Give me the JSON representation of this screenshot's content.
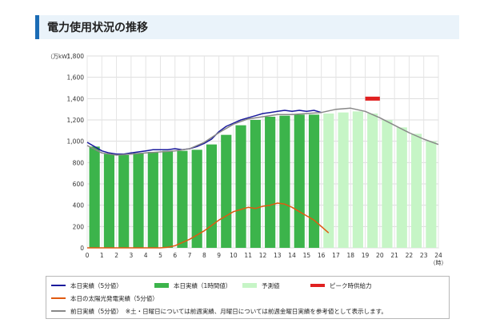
{
  "header": {
    "title": "電力使用状況の推移"
  },
  "chart_data": {
    "type": "bar",
    "yunit": "（万kW）",
    "xunit": "（時）",
    "ylim": [
      0,
      1800
    ],
    "yticks": [
      0,
      200,
      400,
      600,
      800,
      1000,
      1200,
      1400,
      1600,
      1800
    ],
    "xlim": [
      0,
      24
    ],
    "xticks": [
      "0",
      "1",
      "2",
      "3",
      "4",
      "5",
      "6",
      "7",
      "8",
      "9",
      "10",
      "11",
      "12",
      "13",
      "14",
      "15",
      "16",
      "17",
      "18",
      "19",
      "20",
      "21",
      "22",
      "23",
      "24"
    ],
    "grid": true,
    "series": [
      {
        "name": "本日実績（1時間値）",
        "kind": "bar",
        "color": "#3cb44b",
        "hours": [
          0,
          1,
          2,
          3,
          4,
          5,
          6,
          7,
          8,
          9,
          10,
          11,
          12,
          13,
          14,
          15
        ],
        "values": [
          950,
          880,
          870,
          890,
          900,
          910,
          910,
          920,
          970,
          1060,
          1150,
          1200,
          1230,
          1240,
          1250,
          1250
        ]
      },
      {
        "name": "予測値",
        "kind": "bar",
        "color": "#c6f5c6",
        "hours": [
          16,
          17,
          18,
          19,
          20,
          21,
          22,
          23
        ],
        "values": [
          1260,
          1270,
          1280,
          1260,
          1200,
          1130,
          1070,
          1000
        ]
      },
      {
        "name": "本日実績（5分値）",
        "kind": "line",
        "color": "#1a1a9c",
        "x": [
          0,
          0.5,
          1,
          1.5,
          2,
          2.5,
          3,
          3.5,
          4,
          4.5,
          5,
          5.5,
          6,
          6.5,
          7,
          7.5,
          8,
          8.5,
          9,
          9.5,
          10,
          10.5,
          11,
          11.5,
          12,
          12.5,
          13,
          13.5,
          14,
          14.5,
          15,
          15.5,
          16
        ],
        "y": [
          990,
          950,
          910,
          890,
          880,
          880,
          890,
          900,
          910,
          920,
          920,
          920,
          930,
          920,
          930,
          950,
          980,
          1020,
          1090,
          1140,
          1170,
          1200,
          1220,
          1240,
          1260,
          1270,
          1280,
          1290,
          1280,
          1290,
          1280,
          1290,
          1270
        ]
      },
      {
        "name": "本日の太陽光発電実績（5分値）",
        "kind": "line",
        "color": "#e05a10",
        "x": [
          0,
          5,
          5.5,
          6,
          6.5,
          7,
          7.5,
          8,
          8.5,
          9,
          9.5,
          10,
          10.5,
          11,
          11.5,
          12,
          12.5,
          13,
          13.5,
          14,
          14.5,
          15,
          15.5,
          16,
          16.5
        ],
        "y": [
          0,
          0,
          5,
          20,
          50,
          80,
          120,
          160,
          210,
          260,
          300,
          340,
          360,
          380,
          370,
          390,
          400,
          420,
          410,
          380,
          340,
          300,
          260,
          200,
          140
        ]
      },
      {
        "name": "前日実績（5分値）",
        "kind": "line",
        "color": "#888888",
        "x": [
          0,
          1,
          2,
          3,
          4,
          5,
          6,
          7,
          8,
          9,
          10,
          11,
          12,
          13,
          14,
          15,
          16,
          17,
          18,
          19,
          20,
          21,
          22,
          23,
          24
        ],
        "y": [
          960,
          890,
          870,
          880,
          890,
          900,
          910,
          930,
          990,
          1080,
          1160,
          1210,
          1230,
          1250,
          1250,
          1260,
          1270,
          1300,
          1310,
          1280,
          1220,
          1150,
          1080,
          1020,
          970
        ]
      },
      {
        "name": "ピーク時供給力",
        "kind": "marker",
        "color": "#e02020",
        "x": [
          19,
          20
        ],
        "y": [
          1400,
          1400
        ]
      }
    ],
    "legend_note": "※土・日曜日については前週実績、月曜日については前週金曜日実績を参考値として表示します。"
  }
}
